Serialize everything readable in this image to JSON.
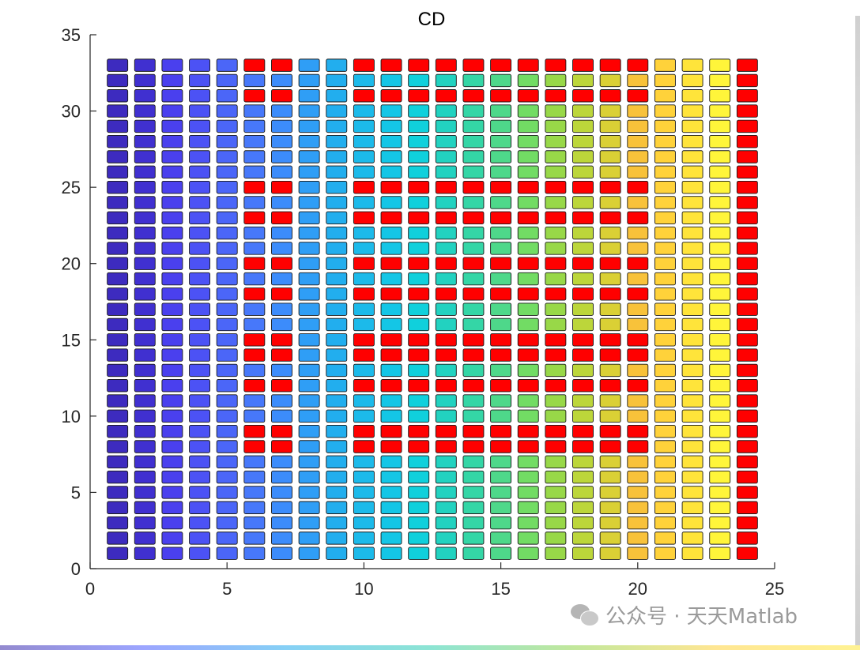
{
  "figure": {
    "background": "#ffffff",
    "watermark_text": "公众号 · 天天Matlab",
    "watermark_icon": "wechat-icon"
  },
  "chart_data": {
    "type": "heatmap",
    "title": "CD",
    "xlabel": "",
    "ylabel": "",
    "xlim": [
      0,
      25
    ],
    "ylim": [
      0,
      35
    ],
    "xticks": [
      0,
      5,
      10,
      15,
      20,
      25
    ],
    "yticks": [
      0,
      5,
      10,
      15,
      20,
      25,
      30,
      35
    ],
    "grid": false,
    "cell_shape": "rounded-rectangle",
    "edge_color": "#1a1a1a",
    "columns_x": [
      1,
      2,
      3,
      4,
      5,
      6,
      7,
      8,
      9,
      10,
      11,
      12,
      13,
      14,
      15,
      16,
      17,
      18,
      19,
      20,
      21,
      22,
      23,
      24
    ],
    "rows_y": [
      1,
      2,
      3,
      4,
      5,
      6,
      7,
      8,
      9,
      10,
      11,
      12,
      13,
      14,
      15,
      16,
      17,
      18,
      19,
      20,
      21,
      22,
      23,
      24,
      25,
      26,
      27,
      28,
      29,
      30,
      31,
      32,
      33
    ],
    "column_colors": [
      "#3d2bbf",
      "#4030d0",
      "#4a40ee",
      "#4c52f5",
      "#4b66f8",
      "#4778fa",
      "#3c8cfb",
      "#2f9ef6",
      "#22aeee",
      "#1cbaea",
      "#14c6e6",
      "#10d0dc",
      "#22d2c0",
      "#34d6a6",
      "#4ed88a",
      "#72dc64",
      "#98d848",
      "#bcd63a",
      "#dad035",
      "#f8c23a",
      "#ffd23a",
      "#ffe43a",
      "#fff53a",
      "#ff0000"
    ],
    "highlight_color": "#ff0000",
    "highlight_rows": [
      8,
      9,
      12,
      14,
      15,
      18,
      20,
      23,
      25,
      31,
      33
    ],
    "highlight_columns": [
      6,
      7,
      10,
      11,
      12,
      13,
      14,
      15,
      16,
      17,
      18,
      19,
      20
    ]
  }
}
